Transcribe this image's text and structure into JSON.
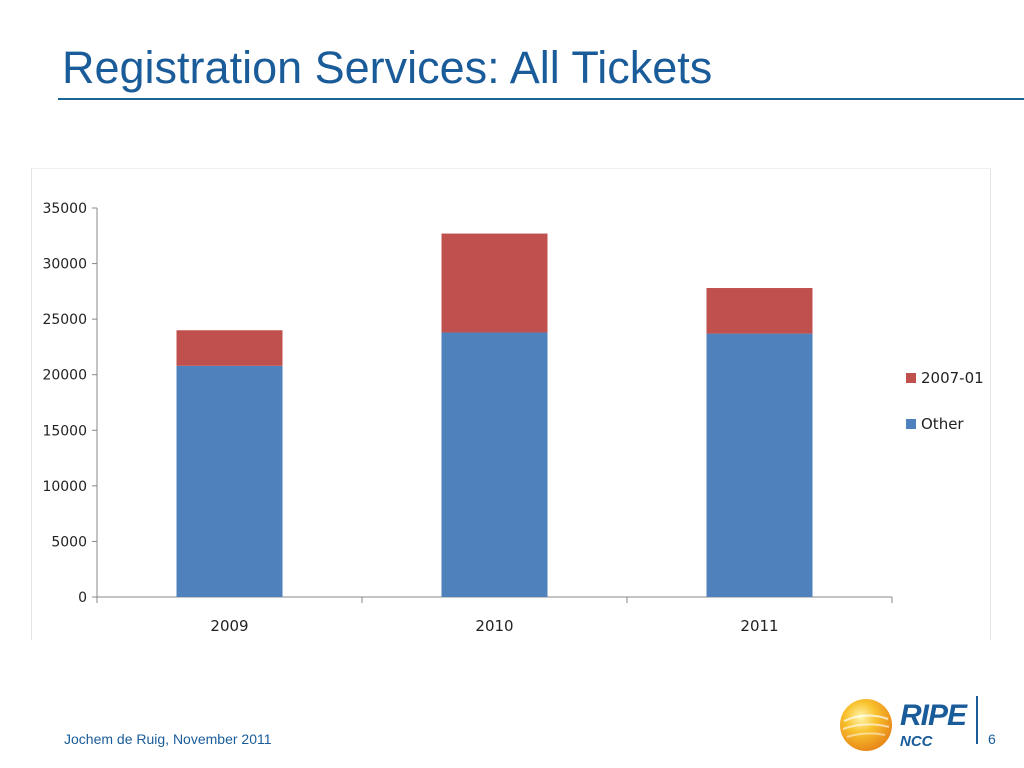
{
  "slide": {
    "title": "Registration Services: All Tickets",
    "footer": "Jochem de Ruig, November 2011",
    "page_number": "6",
    "logo": {
      "word": "RIPE",
      "sub": "NCC"
    }
  },
  "colors": {
    "title": "#1a5c99",
    "other": "#4f81bd",
    "policy_2007_01": "#c0504d",
    "axis": "#888888"
  },
  "chart_data": {
    "type": "bar",
    "stacked": true,
    "categories": [
      "2009",
      "2010",
      "2011"
    ],
    "series": [
      {
        "name": "Other",
        "values": [
          20800,
          23800,
          23700
        ]
      },
      {
        "name": "2007-01",
        "values": [
          3200,
          8900,
          4100
        ]
      }
    ],
    "y_ticks": [
      "0",
      "5000",
      "10000",
      "15000",
      "20000",
      "25000",
      "30000",
      "35000"
    ],
    "ylim": [
      0,
      35000
    ],
    "grid": false,
    "legend_position": "right"
  }
}
